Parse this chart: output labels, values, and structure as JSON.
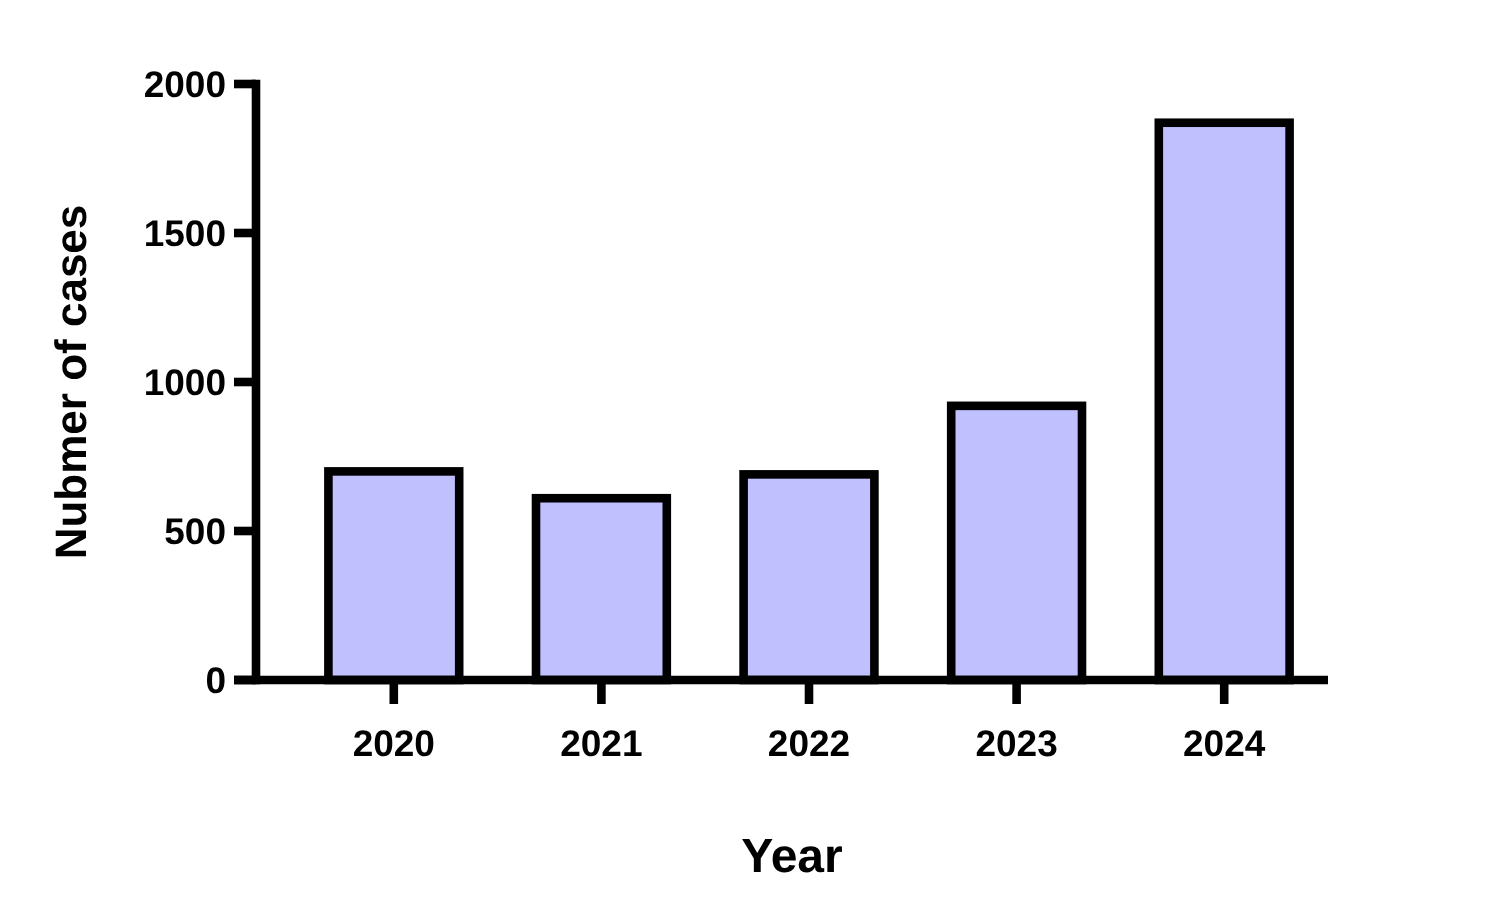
{
  "chart_data": {
    "type": "bar",
    "xlabel": "Year",
    "ylabel": "Nubmer of cases",
    "categories": [
      "2020",
      "2021",
      "2022",
      "2023",
      "2024"
    ],
    "values": [
      700,
      610,
      690,
      920,
      1870
    ],
    "color": "#c0c0ff",
    "ylim": [
      0,
      2000
    ],
    "yticks": [
      0,
      500,
      1000,
      1500,
      2000
    ]
  }
}
